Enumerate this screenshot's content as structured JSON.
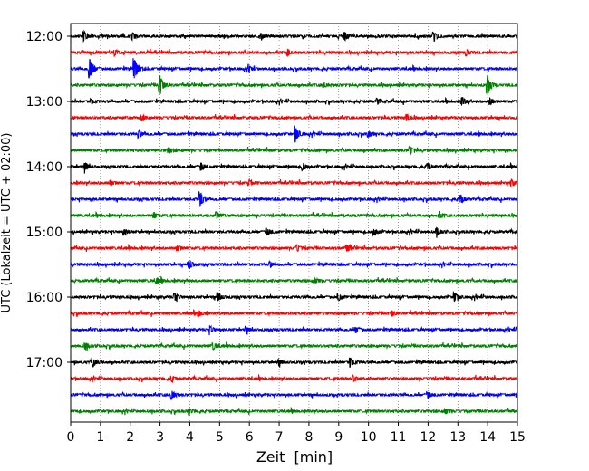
{
  "chart_data": {
    "type": "line",
    "title": "",
    "xlabel": "Zeit  [min]",
    "ylabel": "UTC (Lokalzeit = UTC + 02:00)",
    "xlim": [
      0,
      15
    ],
    "x_ticks": [
      0,
      1,
      2,
      3,
      4,
      5,
      6,
      7,
      8,
      9,
      10,
      11,
      12,
      13,
      14,
      15
    ],
    "y_tick_labels": [
      "12:00",
      "13:00",
      "14:00",
      "15:00",
      "16:00",
      "17:00"
    ],
    "trace_interval_min": 15,
    "grid": "vertical dotted",
    "colors": [
      "#000000",
      "#ff0000",
      "#0000ff",
      "#008000"
    ],
    "series": [
      {
        "start": "12:00",
        "events": [
          [
            0.45,
            1.0
          ],
          [
            2.1,
            0.6
          ],
          [
            6.4,
            0.5
          ],
          [
            9.2,
            0.8
          ],
          [
            12.2,
            0.8
          ]
        ]
      },
      {
        "start": "12:15",
        "events": [
          [
            1.5,
            0.5
          ],
          [
            7.3,
            0.5
          ],
          [
            13.3,
            0.6
          ]
        ]
      },
      {
        "start": "12:30",
        "events": [
          [
            0.65,
            2.0
          ],
          [
            2.15,
            2.2
          ],
          [
            6.0,
            0.5
          ]
        ]
      },
      {
        "start": "12:45",
        "events": [
          [
            3.0,
            2.0
          ],
          [
            8.5,
            0.4
          ],
          [
            14.0,
            2.0
          ]
        ]
      },
      {
        "start": "13:00",
        "events": [
          [
            0.7,
            0.5
          ],
          [
            10.3,
            0.5
          ],
          [
            13.15,
            0.7
          ],
          [
            14.1,
            0.6
          ]
        ]
      },
      {
        "start": "13:15",
        "events": [
          [
            2.4,
            0.5
          ],
          [
            11.3,
            0.6
          ]
        ]
      },
      {
        "start": "13:30",
        "events": [
          [
            2.3,
            0.7
          ],
          [
            7.55,
            1.6
          ],
          [
            10.0,
            0.5
          ]
        ]
      },
      {
        "start": "13:45",
        "events": [
          [
            3.3,
            0.5
          ],
          [
            11.4,
            0.6
          ]
        ]
      },
      {
        "start": "14:00",
        "events": [
          [
            0.5,
            0.9
          ],
          [
            4.4,
            0.7
          ],
          [
            7.8,
            0.7
          ],
          [
            12.0,
            0.6
          ]
        ]
      },
      {
        "start": "14:15",
        "events": [
          [
            1.35,
            0.5
          ],
          [
            6.0,
            0.5
          ],
          [
            14.8,
            0.6
          ]
        ]
      },
      {
        "start": "14:30",
        "events": [
          [
            4.35,
            1.5
          ],
          [
            13.1,
            0.8
          ]
        ]
      },
      {
        "start": "14:45",
        "events": [
          [
            2.8,
            0.5
          ],
          [
            4.9,
            0.8
          ],
          [
            12.4,
            0.5
          ]
        ]
      },
      {
        "start": "15:00",
        "events": [
          [
            1.8,
            0.5
          ],
          [
            6.6,
            0.7
          ],
          [
            10.2,
            0.5
          ],
          [
            12.3,
            0.7
          ]
        ]
      },
      {
        "start": "15:15",
        "events": [
          [
            3.6,
            0.5
          ],
          [
            7.6,
            0.6
          ],
          [
            9.3,
            0.6
          ]
        ]
      },
      {
        "start": "15:30",
        "events": [
          [
            4.0,
            0.8
          ],
          [
            6.7,
            0.5
          ]
        ]
      },
      {
        "start": "15:45",
        "events": [
          [
            2.9,
            0.5
          ],
          [
            8.2,
            0.5
          ]
        ]
      },
      {
        "start": "16:00",
        "events": [
          [
            3.5,
            0.8
          ],
          [
            4.95,
            0.9
          ],
          [
            9.0,
            0.6
          ],
          [
            12.9,
            0.8
          ]
        ]
      },
      {
        "start": "16:15",
        "events": [
          [
            4.3,
            0.5
          ],
          [
            10.8,
            0.5
          ]
        ]
      },
      {
        "start": "16:30",
        "events": [
          [
            4.7,
            0.6
          ],
          [
            5.9,
            0.6
          ],
          [
            9.6,
            0.5
          ]
        ]
      },
      {
        "start": "16:45",
        "events": [
          [
            0.5,
            0.6
          ],
          [
            4.8,
            0.6
          ]
        ]
      },
      {
        "start": "17:00",
        "events": [
          [
            0.75,
            0.9
          ],
          [
            7.0,
            0.6
          ],
          [
            9.4,
            1.0
          ]
        ]
      },
      {
        "start": "17:15",
        "events": [
          [
            3.4,
            0.5
          ],
          [
            9.5,
            0.5
          ]
        ]
      },
      {
        "start": "17:30",
        "events": [
          [
            3.4,
            0.8
          ],
          [
            12.0,
            0.5
          ]
        ]
      },
      {
        "start": "17:45",
        "events": [
          [
            4.0,
            0.4
          ],
          [
            12.6,
            0.5
          ]
        ]
      }
    ]
  }
}
